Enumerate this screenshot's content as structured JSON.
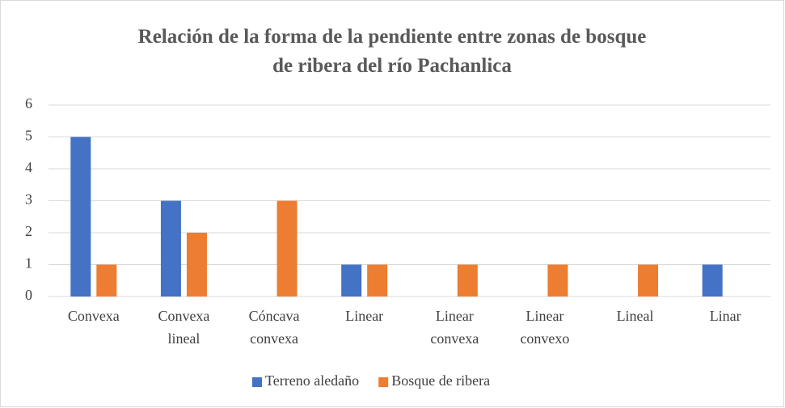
{
  "chart_data": {
    "type": "bar",
    "title": "Relación de la forma de la pendiente entre zonas de bosque de ribera del río Pachanlica",
    "categories": [
      "Convexa",
      "Convexa lineal",
      "Cóncava convexa",
      "Linear",
      "Linear convexa",
      "Linear convexo",
      "Lineal",
      "Linar"
    ],
    "series": [
      {
        "name": "Terreno aledaño",
        "color": "#4472c4",
        "values": [
          5,
          3,
          0,
          1,
          0,
          0,
          0,
          1
        ]
      },
      {
        "name": "Bosque de ribera",
        "color": "#ed7d31",
        "values": [
          1,
          2,
          3,
          1,
          1,
          1,
          1,
          0
        ]
      }
    ],
    "ylim": [
      0,
      6
    ],
    "yticks": [
      0,
      1,
      2,
      3,
      4,
      5,
      6
    ],
    "grid": true,
    "legend": "bottom"
  }
}
